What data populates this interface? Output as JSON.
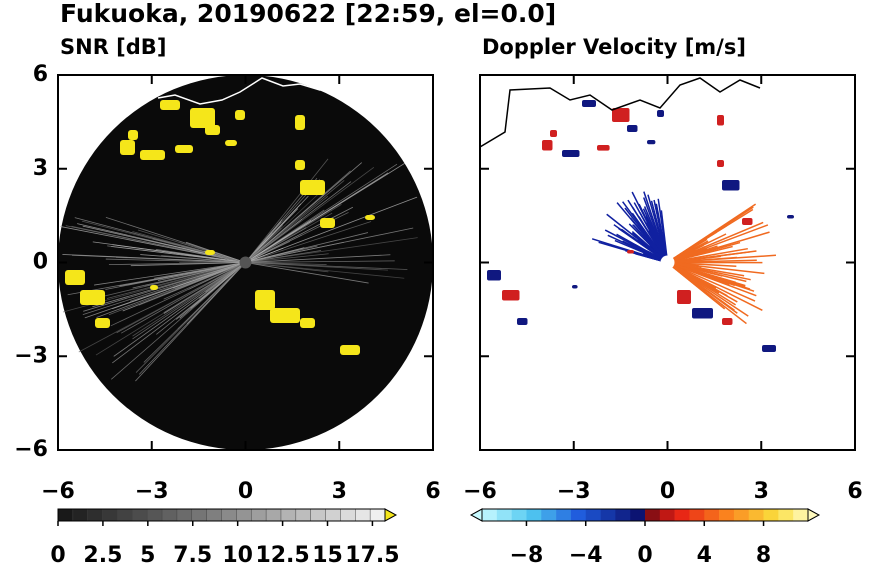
{
  "title": "Fukuoka, 20190622 [22:59, el=0.0]",
  "chart_data": [
    {
      "type": "ppi",
      "title": "SNR [dB]",
      "xlim": [
        -6,
        6
      ],
      "ylim": [
        -6,
        6
      ],
      "xticks": [
        {
          "value": -6,
          "label": "−6"
        },
        {
          "value": -3,
          "label": "−3"
        },
        0,
        3,
        6
      ],
      "yticks": [
        {
          "value": -6,
          "label": "−6"
        },
        {
          "value": -3,
          "label": "−3"
        },
        0,
        3,
        6
      ],
      "ytick_labels": true,
      "colorbar": {
        "lim": [
          0,
          18.2
        ],
        "ticks": [
          0,
          2.5,
          5,
          7.5,
          10,
          12.5,
          15,
          17.5
        ],
        "extend": "max"
      }
    },
    {
      "type": "ppi",
      "title": "Doppler Velocity [m/s]",
      "xlim": [
        -6,
        6
      ],
      "ylim": [
        -6,
        6
      ],
      "xticks": [
        {
          "value": -6,
          "label": "−6"
        },
        {
          "value": -3,
          "label": "−3"
        },
        0,
        3,
        6
      ],
      "yticks": [
        -6,
        -3,
        0,
        3,
        6
      ],
      "ytick_labels": false,
      "colorbar": {
        "lim": [
          -11,
          11
        ],
        "ticks": [
          {
            "value": -8,
            "label": "−8"
          },
          {
            "value": -4,
            "label": "−4"
          },
          0,
          4,
          8
        ],
        "extend": "both"
      }
    }
  ]
}
